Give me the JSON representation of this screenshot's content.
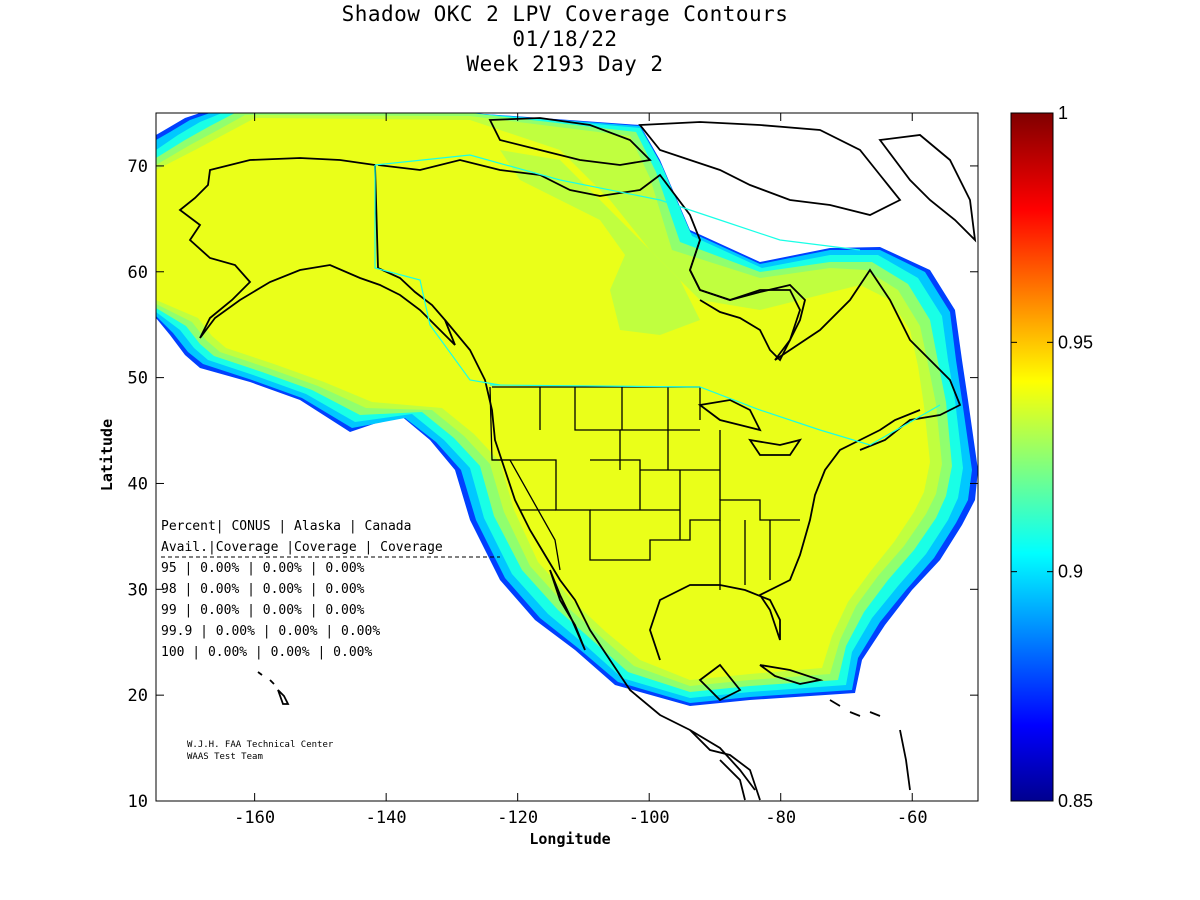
{
  "title": {
    "line1": "Shadow OKC 2 LPV Coverage Contours",
    "line2": "01/18/22",
    "line3": "Week 2193 Day 2"
  },
  "axes": {
    "xlabel": "Longitude",
    "ylabel": "Latitude",
    "xlim": [
      -175,
      -50
    ],
    "ylim": [
      10,
      75
    ],
    "xticks": [
      "-160",
      "-140",
      "-120",
      "-100",
      "-80",
      "-60"
    ],
    "yticks": [
      "70",
      "60",
      "50",
      "40",
      "30",
      "20",
      "10"
    ]
  },
  "colorbar": {
    "min": 0.85,
    "max": 1,
    "ticks": [
      "1",
      "0.95",
      "0.9",
      "0.85"
    ],
    "colormap": "jet"
  },
  "table": {
    "header1": "Percent| CONUS   | Alaska  | Canada",
    "header2": " Avail.|Coverage |Coverage | Coverage",
    "rows": [
      "  95   | 0.00%  | 0.00% | 0.00%",
      "  98   | 0.00%  | 0.00% | 0.00%",
      "  99   | 0.00%  | 0.00% | 0.00%",
      "99.9   | 0.00%  | 0.00% | 0.00%",
      " 100   | 0.00%  | 0.00% | 0.00%"
    ]
  },
  "credit": {
    "line1": "W.J.H. FAA Technical Center",
    "line2": "WAAS Test Team"
  },
  "colors": {
    "yellow": "#eaff19",
    "yellow_green": "#c0ff3f",
    "green": "#90ff6e",
    "cyan": "#19ffe6",
    "light_blue": "#00c8ff",
    "blue": "#0050ff"
  }
}
